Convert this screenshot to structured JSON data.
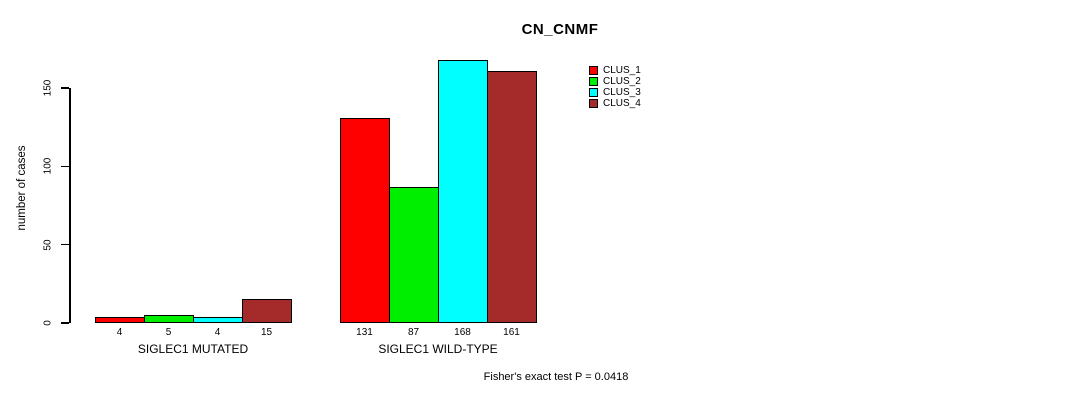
{
  "title": "CN_CNMF",
  "footer": "Fisher's exact test P = 0.0418",
  "chart_data": {
    "type": "bar",
    "title": "CN_CNMF",
    "xlabel": "",
    "ylabel": "number of cases",
    "ylim": [
      0,
      150
    ],
    "yticks": [
      0,
      50,
      100,
      150
    ],
    "grid": false,
    "legend_position": "top-right",
    "categories": [
      "SIGLEC1 MUTATED",
      "SIGLEC1 WILD-TYPE"
    ],
    "series": [
      {
        "name": "CLUS_1",
        "color": "#FF0000",
        "values": [
          4,
          131
        ]
      },
      {
        "name": "CLUS_2",
        "color": "#00EE00",
        "values": [
          5,
          87
        ]
      },
      {
        "name": "CLUS_3",
        "color": "#00FFFF",
        "values": [
          4,
          168
        ]
      },
      {
        "name": "CLUS_4",
        "color": "#A52A2A",
        "values": [
          15,
          161
        ]
      }
    ],
    "bar_value_labels": {
      "SIGLEC1 MUTATED": [
        4,
        5,
        4,
        15
      ],
      "SIGLEC1 WILD-TYPE": [
        131,
        87,
        168,
        161
      ]
    },
    "annotation": "Fisher's exact test P = 0.0418"
  }
}
